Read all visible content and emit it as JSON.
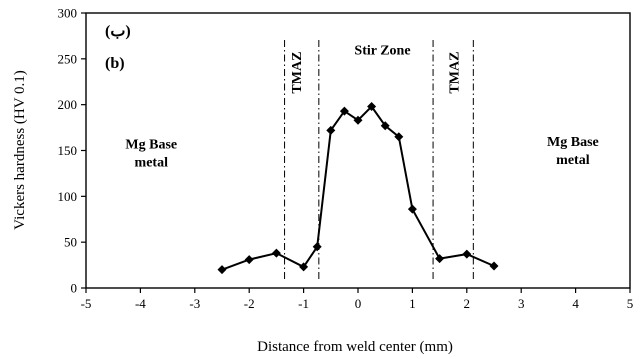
{
  "chart_data": {
    "type": "line",
    "title": "",
    "xlabel": "Distance from weld center (mm)",
    "ylabel": "Vickers hardness (HV 0.1)",
    "xlim": [
      -5,
      5
    ],
    "ylim": [
      0,
      300
    ],
    "xticks": [
      -5,
      -4,
      -3,
      -2,
      -1,
      0,
      1,
      2,
      3,
      4,
      5
    ],
    "yticks": [
      0,
      50,
      100,
      150,
      200,
      250,
      300
    ],
    "grid": false,
    "legend": "none",
    "marker": "diamond",
    "line_color": "#000000",
    "series": [
      {
        "x": [
          -2.5,
          -2.0,
          -1.5,
          -1.0,
          -0.75,
          -0.5,
          -0.25,
          0.0,
          0.25,
          0.5,
          0.75,
          1.0,
          1.5,
          2.0,
          2.5
        ],
        "y": [
          20,
          31,
          38,
          23,
          45,
          172,
          193,
          183,
          198,
          177,
          165,
          86,
          32,
          37,
          24
        ]
      }
    ],
    "zone_boundaries": [
      -1.35,
      -0.72,
      1.38,
      2.12
    ],
    "annotations": [
      {
        "text": "Mg Base\nmetal",
        "x": -3.8,
        "y": 152
      },
      {
        "text": "TMAZ",
        "x": -1.05,
        "y": 235,
        "rotation": -90
      },
      {
        "text": "Stir Zone",
        "x": 0.45,
        "y": 255
      },
      {
        "text": "TMAZ",
        "x": 1.85,
        "y": 235,
        "rotation": -90
      },
      {
        "text": "Mg Base\nmetal",
        "x": 3.95,
        "y": 155
      }
    ],
    "panel_labels": [
      "(ب)",
      "(b)"
    ]
  }
}
